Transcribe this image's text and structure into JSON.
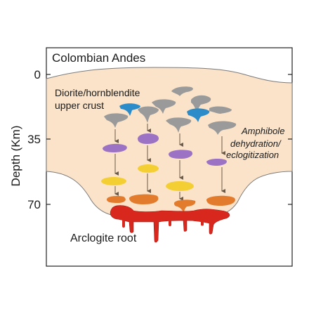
{
  "title": "Colombian Andes",
  "y_axis": {
    "label": "Depth (Km)",
    "ticks": [
      "0",
      "35",
      "70"
    ]
  },
  "labels": {
    "upper_crust_line1": "Diorite/hornblendite",
    "upper_crust_line2": "upper crust",
    "process_line1": "Amphibole",
    "process_line2": "dehydration/",
    "process_line3": "eclogitization",
    "root": "Arclogite root"
  },
  "colors": {
    "crust_fill": "#fbe3c9",
    "gray_body": "#9a9a9a",
    "blue_body": "#2b8cc9",
    "purple_body": "#9b72c4",
    "yellow_body": "#f4cf33",
    "orange_body": "#e37b2c",
    "root_red": "#d8281e",
    "arrow": "#6b5a48"
  },
  "icons": [
    "down-arrow-icon"
  ]
}
